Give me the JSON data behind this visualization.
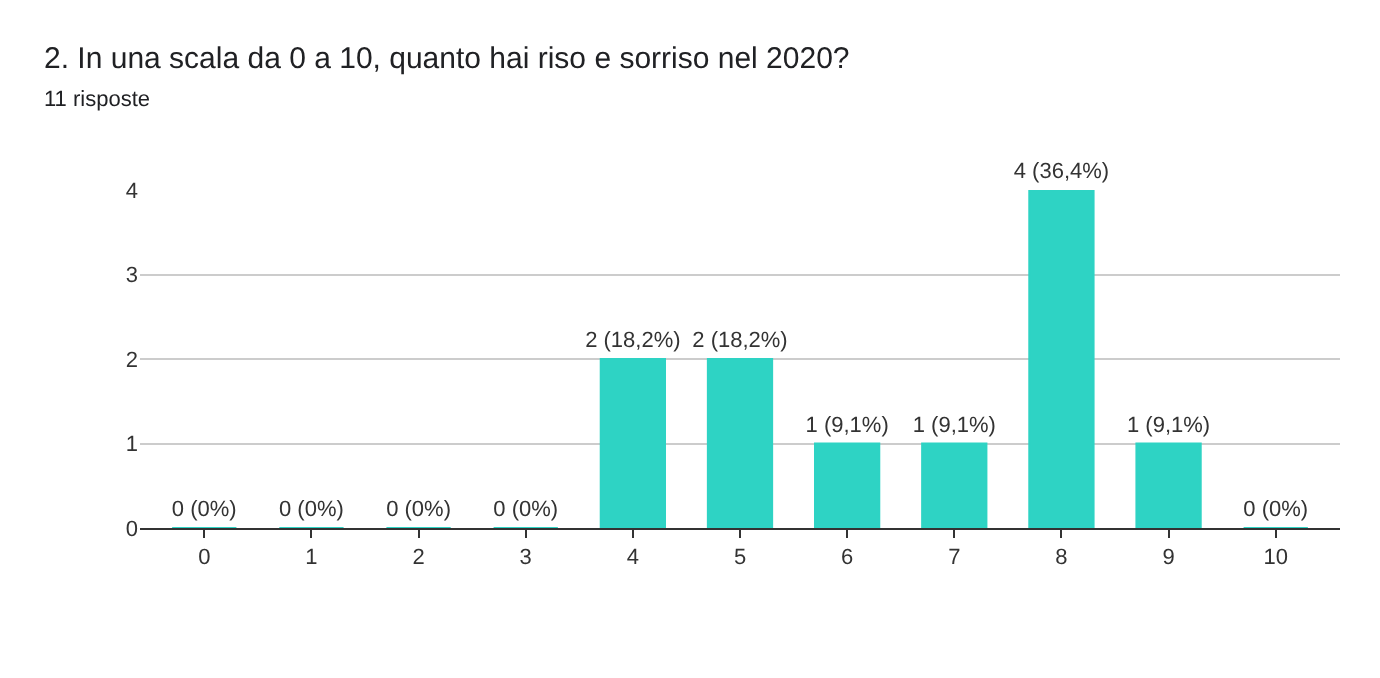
{
  "chart_data": {
    "type": "bar",
    "title": "2. In una scala da 0 a 10, quanto hai riso e sorriso nel 2020?",
    "subtitle": "11 risposte",
    "categories": [
      "0",
      "1",
      "2",
      "3",
      "4",
      "5",
      "6",
      "7",
      "8",
      "9",
      "10"
    ],
    "values": [
      0,
      0,
      0,
      0,
      2,
      2,
      1,
      1,
      4,
      1,
      0
    ],
    "value_labels": [
      "0 (0%)",
      "0 (0%)",
      "0 (0%)",
      "0 (0%)",
      "2 (18,2%)",
      "2 (18,2%)",
      "1 (9,1%)",
      "1 (9,1%)",
      "4 (36,4%)",
      "1 (9,1%)",
      "0 (0%)"
    ],
    "color": "#2ed3c4",
    "ylim": [
      0,
      4
    ],
    "yticks": [
      0,
      1,
      2,
      3,
      4
    ],
    "grid": "y",
    "legend": false
  }
}
